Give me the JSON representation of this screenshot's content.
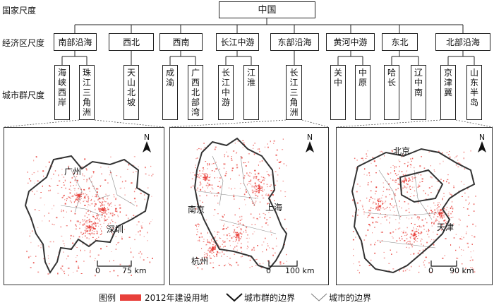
{
  "levels": {
    "national": "国家尺度",
    "economic": "经济区尺度",
    "cluster": "城市群尺度"
  },
  "root": "中国",
  "regions": [
    {
      "label": "南部沿海",
      "clusters": [
        "海峡西岸",
        "珠江三角洲"
      ]
    },
    {
      "label": "西北",
      "clusters": [
        "天山北坡"
      ]
    },
    {
      "label": "西南",
      "clusters": [
        "成渝",
        "广西北部湾"
      ]
    },
    {
      "label": "长江中游",
      "clusters": [
        "长江中游",
        "江淮"
      ]
    },
    {
      "label": "东部沿海",
      "clusters": [
        "长江三角洲"
      ]
    },
    {
      "label": "黄河中游",
      "clusters": [
        "关中",
        "中原"
      ]
    },
    {
      "label": "东北",
      "clusters": [
        "哈长",
        "辽中南"
      ]
    },
    {
      "label": "北部沿海",
      "clusters": [
        "京津冀",
        "山东半岛"
      ]
    }
  ],
  "maps": [
    {
      "cities": [
        "广州",
        "深圳"
      ],
      "scale": "75 km",
      "scale_zero": "0",
      "north": "N"
    },
    {
      "cities": [
        "南京",
        "上海",
        "杭州"
      ],
      "scale": "100 km",
      "scale_zero": "0",
      "north": "N"
    },
    {
      "cities": [
        "北京",
        "天津"
      ],
      "scale": "90 km",
      "scale_zero": "0",
      "north": "N"
    }
  ],
  "legend": {
    "title": "图例",
    "items": [
      "2012年建设用地",
      "城市群的边界",
      "城市的边界"
    ]
  },
  "colors": {
    "landuse": "#e8403a",
    "boundary": "#333333",
    "city_boundary": "#8a8a8a"
  }
}
